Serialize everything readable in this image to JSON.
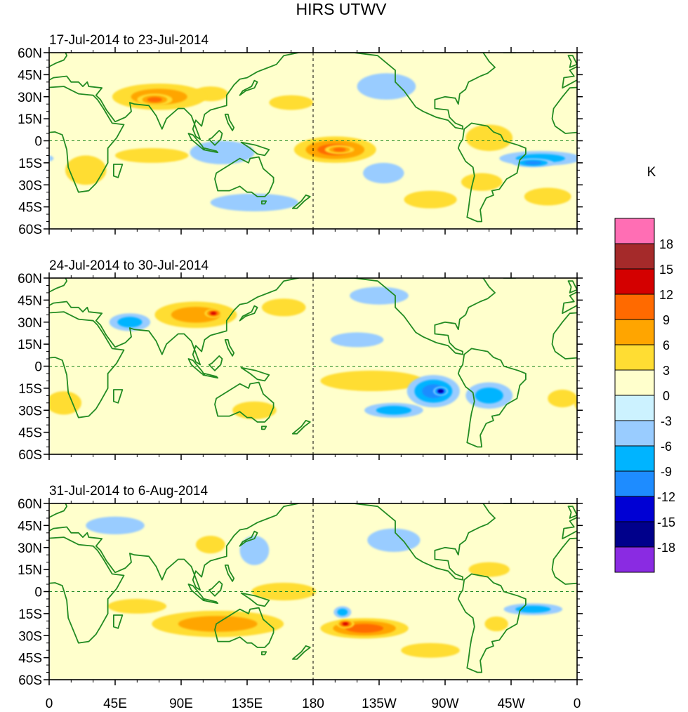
{
  "figure_title": "HIRS UTWV",
  "unit": "K",
  "lat_labels": [
    "60N",
    "45N",
    "30N",
    "15N",
    "0",
    "15S",
    "30S",
    "45S",
    "60S"
  ],
  "lon_labels": [
    "0",
    "45E",
    "90E",
    "135E",
    "180",
    "135W",
    "90W",
    "45W",
    "0"
  ],
  "panels": [
    {
      "title": "17-Jul-2014 to 23-Jul-2014",
      "anomalies": [
        {
          "lon": 75,
          "lat": 30,
          "v": 7,
          "rlon": 32,
          "rlat": 9
        },
        {
          "lon": 72,
          "lat": 28,
          "v": 10,
          "rlon": 12,
          "rlat": 4
        },
        {
          "lon": 110,
          "lat": 32,
          "v": 4,
          "rlon": 12,
          "rlat": 5
        },
        {
          "lon": 165,
          "lat": 26,
          "v": 4,
          "rlon": 15,
          "rlat": 5
        },
        {
          "lon": 195,
          "lat": -6,
          "v": 9,
          "rlon": 28,
          "rlat": 9
        },
        {
          "lon": 198,
          "lat": -6,
          "v": 10,
          "rlon": 10,
          "rlat": 3
        },
        {
          "lon": 118,
          "lat": -8,
          "v": -4,
          "rlon": 22,
          "rlat": 8
        },
        {
          "lon": 230,
          "lat": 37,
          "v": -4,
          "rlon": 20,
          "rlat": 9
        },
        {
          "lon": 335,
          "lat": -12,
          "v": -8,
          "rlon": 28,
          "rlat": 5
        },
        {
          "lon": 330,
          "lat": -15,
          "v": -10,
          "rlon": 14,
          "rlat": 3
        },
        {
          "lon": 228,
          "lat": -22,
          "v": -4,
          "rlon": 14,
          "rlat": 7
        },
        {
          "lon": 70,
          "lat": -10,
          "v": 4,
          "rlon": 25,
          "rlat": 5
        },
        {
          "lon": 300,
          "lat": 2,
          "v": 5,
          "rlon": 16,
          "rlat": 9
        },
        {
          "lon": 340,
          "lat": -38,
          "v": 5,
          "rlon": 16,
          "rlat": 6
        },
        {
          "lon": 295,
          "lat": -28,
          "v": 4,
          "rlon": 14,
          "rlat": 6
        },
        {
          "lon": 25,
          "lat": -20,
          "v": 3,
          "rlon": 14,
          "rlat": 10
        },
        {
          "lon": 140,
          "lat": -42,
          "v": -3,
          "rlon": 30,
          "rlat": 6
        },
        {
          "lon": 260,
          "lat": -40,
          "v": 3,
          "rlon": 18,
          "rlat": 6
        }
      ]
    },
    {
      "title": "24-Jul-2014 to 30-Jul-2014",
      "anomalies": [
        {
          "lon": 100,
          "lat": 35,
          "v": 7,
          "rlon": 28,
          "rlat": 9
        },
        {
          "lon": 112,
          "lat": 36,
          "v": 13,
          "rlon": 6,
          "rlat": 3
        },
        {
          "lon": 55,
          "lat": 30,
          "v": -6,
          "rlon": 14,
          "rlat": 6
        },
        {
          "lon": 262,
          "lat": -17,
          "v": -10,
          "rlon": 18,
          "rlat": 11
        },
        {
          "lon": 267,
          "lat": -17,
          "v": -17,
          "rlon": 5,
          "rlat": 3
        },
        {
          "lon": 300,
          "lat": -20,
          "v": -7,
          "rlon": 16,
          "rlat": 9
        },
        {
          "lon": 235,
          "lat": -30,
          "v": -6,
          "rlon": 20,
          "rlat": 5
        },
        {
          "lon": 220,
          "lat": -10,
          "v": 5,
          "rlon": 35,
          "rlat": 7
        },
        {
          "lon": 210,
          "lat": 18,
          "v": -5,
          "rlon": 18,
          "rlat": 5
        },
        {
          "lon": 10,
          "lat": -25,
          "v": 5,
          "rlon": 12,
          "rlat": 8
        },
        {
          "lon": 350,
          "lat": -22,
          "v": 4,
          "rlon": 10,
          "rlat": 6
        },
        {
          "lon": 140,
          "lat": -30,
          "v": 3,
          "rlon": 15,
          "rlat": 6
        },
        {
          "lon": 160,
          "lat": 40,
          "v": 4,
          "rlon": 15,
          "rlat": 6
        },
        {
          "lon": 225,
          "lat": 48,
          "v": -4,
          "rlon": 20,
          "rlat": 6
        }
      ]
    },
    {
      "title": "31-Jul-2014 to 6-Aug-2014",
      "anomalies": [
        {
          "lon": 115,
          "lat": -22,
          "v": 6,
          "rlon": 45,
          "rlat": 9
        },
        {
          "lon": 215,
          "lat": -25,
          "v": 9,
          "rlon": 30,
          "rlat": 7
        },
        {
          "lon": 202,
          "lat": -22,
          "v": 13,
          "rlon": 6,
          "rlat": 3
        },
        {
          "lon": 160,
          "lat": 0,
          "v": 5,
          "rlon": 22,
          "rlat": 6
        },
        {
          "lon": 200,
          "lat": -14,
          "v": -6,
          "rlon": 6,
          "rlat": 4
        },
        {
          "lon": 330,
          "lat": -12,
          "v": -7,
          "rlon": 20,
          "rlat": 4
        },
        {
          "lon": 305,
          "lat": -22,
          "v": 5,
          "rlon": 8,
          "rlat": 5
        },
        {
          "lon": 140,
          "lat": 28,
          "v": -4,
          "rlon": 10,
          "rlat": 10
        },
        {
          "lon": 110,
          "lat": 32,
          "v": 5,
          "rlon": 10,
          "rlat": 6
        },
        {
          "lon": 235,
          "lat": 35,
          "v": -3,
          "rlon": 18,
          "rlat": 8
        },
        {
          "lon": 300,
          "lat": 15,
          "v": 4,
          "rlon": 14,
          "rlat": 5
        },
        {
          "lon": 45,
          "lat": 45,
          "v": -3,
          "rlon": 20,
          "rlat": 6
        },
        {
          "lon": 60,
          "lat": -10,
          "v": 3,
          "rlon": 20,
          "rlat": 5
        },
        {
          "lon": 260,
          "lat": -40,
          "v": 4,
          "rlon": 20,
          "rlat": 5
        }
      ]
    }
  ],
  "colorbar": {
    "labels": [
      "18",
      "15",
      "12",
      "9",
      "6",
      "3",
      "0",
      "-3",
      "-6",
      "-9",
      "-12",
      "-15",
      "-18"
    ],
    "colors": [
      "#ff6eb4",
      "#a52a2a",
      "#d40000",
      "#ff6a00",
      "#ffa500",
      "#ffdd33",
      "#ffffcc",
      "#ccf2ff",
      "#99ccff",
      "#00b4ff",
      "#1e8cff",
      "#0000d4",
      "#00008b",
      "#8a2be2"
    ]
  },
  "styles": {
    "coast_color": "#228b22",
    "grid_color": "#228b22"
  }
}
